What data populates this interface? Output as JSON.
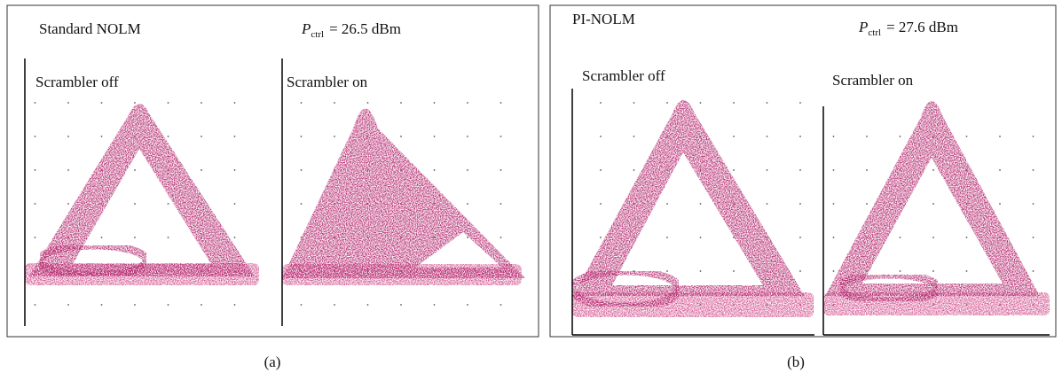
{
  "panels": [
    {
      "label": "(a)",
      "title": "Standard NOLM",
      "power": {
        "symbol": "P",
        "subscript": "ctrl",
        "value": "= 26.5 dBm"
      },
      "eyes": [
        {
          "label": "Scrambler off"
        },
        {
          "label": "Scrambler on"
        }
      ]
    },
    {
      "label": "(b)",
      "title": "PI-NOLM",
      "power": {
        "symbol": "P",
        "subscript": "ctrl",
        "value": "= 27.6 dBm"
      },
      "eyes": [
        {
          "label": "Scrambler off"
        },
        {
          "label": "Scrambler on"
        }
      ]
    }
  ]
}
